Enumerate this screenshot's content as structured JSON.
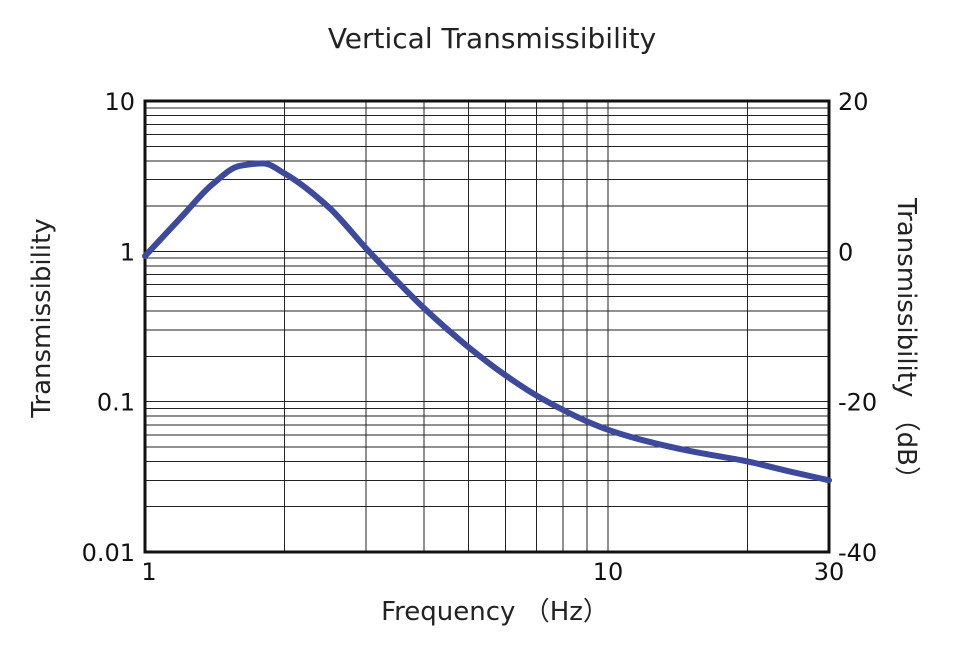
{
  "chart_data": {
    "type": "line",
    "title": "Vertical Transmissibility",
    "xlabel": "Frequency （Hz）",
    "ylabel": "Transmissibility",
    "y2label": "Transmissibility （dB）",
    "xscale": "log",
    "yscale": "log",
    "xlim": [
      1,
      30
    ],
    "ylim": [
      0.01,
      10
    ],
    "y2lim": [
      -40,
      20
    ],
    "x_tick_labels": [
      "1",
      "10",
      "30"
    ],
    "y_tick_labels": [
      "0.01",
      "0.1",
      "1",
      "10"
    ],
    "y2_tick_labels": [
      "-40",
      "-20",
      "0",
      "20"
    ],
    "grid": true,
    "legend": "none",
    "line_color": "#3d4a9b",
    "series": [
      {
        "x": [
          1.0,
          1.2,
          1.4,
          1.6,
          1.8,
          2.0,
          2.5,
          3.0,
          4.0,
          5.0,
          6.0,
          7.0,
          8.0,
          9.0,
          10.0,
          12.0,
          15.0,
          20.0,
          25.0,
          30.0
        ],
        "values": [
          0.93,
          1.7,
          2.8,
          3.7,
          3.85,
          3.3,
          1.95,
          1.05,
          0.42,
          0.23,
          0.15,
          0.11,
          0.088,
          0.074,
          0.065,
          0.055,
          0.047,
          0.04,
          0.034,
          0.03
        ]
      }
    ]
  }
}
